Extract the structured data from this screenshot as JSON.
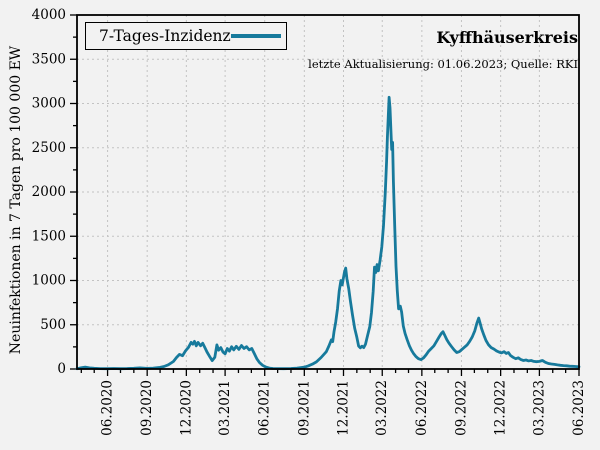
{
  "page": {
    "background": "#f2f2f2"
  },
  "chart_data": {
    "type": "line",
    "title": "Kyffhäuserkreis",
    "subtitle": "letzte Aktualisierung: 01.06.2023; Quelle: RKI",
    "xlabel": "",
    "ylabel": "Neuinfektionen in 7 Tagen pro 100 000 EW",
    "legend_position": "top-left",
    "grid": "dashed at major ticks",
    "x_range": [
      "2020-03-22",
      "2023-06-01"
    ],
    "y_range": [
      0,
      4000
    ],
    "y_major_step": 500,
    "y_minor_step": 250,
    "x_major_ticks": [
      {
        "label": "06.2020",
        "date": "2020-06-01"
      },
      {
        "label": "09.2020",
        "date": "2020-09-01"
      },
      {
        "label": "12.2020",
        "date": "2020-12-01"
      },
      {
        "label": "03.2021",
        "date": "2021-03-01"
      },
      {
        "label": "06.2021",
        "date": "2021-06-01"
      },
      {
        "label": "09.2021",
        "date": "2021-09-01"
      },
      {
        "label": "12.2021",
        "date": "2021-12-01"
      },
      {
        "label": "03.2022",
        "date": "2022-03-01"
      },
      {
        "label": "06.2022",
        "date": "2022-06-01"
      },
      {
        "label": "09.2022",
        "date": "2022-09-01"
      },
      {
        "label": "12.2022",
        "date": "2022-12-01"
      },
      {
        "label": "03.2023",
        "date": "2023-03-01"
      },
      {
        "label": "06.2023",
        "date": "2023-06-01"
      }
    ],
    "colors": {
      "line": "#177a9c",
      "background": "#f2f2f2",
      "grid": "#c3c3c3",
      "frame": "#000000"
    },
    "series": [
      {
        "name": "7-Tages-Inzidenz",
        "color": "#177a9c",
        "points": [
          [
            "2020-03-22",
            3
          ],
          [
            "2020-04-01",
            15
          ],
          [
            "2020-04-10",
            22
          ],
          [
            "2020-04-20",
            12
          ],
          [
            "2020-05-01",
            8
          ],
          [
            "2020-05-15",
            5
          ],
          [
            "2020-06-01",
            3
          ],
          [
            "2020-06-15",
            6
          ],
          [
            "2020-07-01",
            3
          ],
          [
            "2020-07-15",
            4
          ],
          [
            "2020-08-01",
            8
          ],
          [
            "2020-08-15",
            12
          ],
          [
            "2020-09-01",
            7
          ],
          [
            "2020-09-15",
            10
          ],
          [
            "2020-10-01",
            18
          ],
          [
            "2020-10-10",
            28
          ],
          [
            "2020-10-20",
            48
          ],
          [
            "2020-11-01",
            85
          ],
          [
            "2020-11-08",
            130
          ],
          [
            "2020-11-15",
            165
          ],
          [
            "2020-11-22",
            150
          ],
          [
            "2020-11-29",
            205
          ],
          [
            "2020-12-06",
            245
          ],
          [
            "2020-12-12",
            300
          ],
          [
            "2020-12-16",
            280
          ],
          [
            "2020-12-20",
            312
          ],
          [
            "2020-12-24",
            262
          ],
          [
            "2020-12-28",
            300
          ],
          [
            "2021-01-03",
            262
          ],
          [
            "2021-01-08",
            292
          ],
          [
            "2021-01-13",
            242
          ],
          [
            "2021-01-18",
            192
          ],
          [
            "2021-01-24",
            142
          ],
          [
            "2021-01-30",
            95
          ],
          [
            "2021-02-05",
            132
          ],
          [
            "2021-02-10",
            272
          ],
          [
            "2021-02-14",
            212
          ],
          [
            "2021-02-19",
            242
          ],
          [
            "2021-02-24",
            192
          ],
          [
            "2021-03-01",
            172
          ],
          [
            "2021-03-06",
            232
          ],
          [
            "2021-03-11",
            202
          ],
          [
            "2021-03-16",
            252
          ],
          [
            "2021-03-21",
            216
          ],
          [
            "2021-03-27",
            256
          ],
          [
            "2021-04-02",
            222
          ],
          [
            "2021-04-08",
            266
          ],
          [
            "2021-04-14",
            232
          ],
          [
            "2021-04-20",
            252
          ],
          [
            "2021-04-26",
            216
          ],
          [
            "2021-05-02",
            232
          ],
          [
            "2021-05-08",
            172
          ],
          [
            "2021-05-14",
            112
          ],
          [
            "2021-05-20",
            72
          ],
          [
            "2021-05-27",
            42
          ],
          [
            "2021-06-04",
            22
          ],
          [
            "2021-06-12",
            10
          ],
          [
            "2021-06-20",
            6
          ],
          [
            "2021-07-01",
            4
          ],
          [
            "2021-07-15",
            3
          ],
          [
            "2021-08-01",
            6
          ],
          [
            "2021-08-15",
            10
          ],
          [
            "2021-09-01",
            20
          ],
          [
            "2021-09-10",
            35
          ],
          [
            "2021-09-20",
            55
          ],
          [
            "2021-09-29",
            80
          ],
          [
            "2021-10-10",
            130
          ],
          [
            "2021-10-22",
            195
          ],
          [
            "2021-10-28",
            260
          ],
          [
            "2021-11-03",
            330
          ],
          [
            "2021-11-06",
            310
          ],
          [
            "2021-11-09",
            420
          ],
          [
            "2021-11-13",
            530
          ],
          [
            "2021-11-17",
            680
          ],
          [
            "2021-11-21",
            880
          ],
          [
            "2021-11-25",
            1000
          ],
          [
            "2021-11-28",
            950
          ],
          [
            "2021-12-03",
            1090
          ],
          [
            "2021-12-06",
            1140
          ],
          [
            "2021-12-09",
            1020
          ],
          [
            "2021-12-13",
            910
          ],
          [
            "2021-12-17",
            770
          ],
          [
            "2021-12-22",
            610
          ],
          [
            "2021-12-27",
            460
          ],
          [
            "2022-01-01",
            360
          ],
          [
            "2022-01-05",
            260
          ],
          [
            "2022-01-09",
            240
          ],
          [
            "2022-01-13",
            258
          ],
          [
            "2022-01-17",
            242
          ],
          [
            "2022-01-21",
            280
          ],
          [
            "2022-01-26",
            380
          ],
          [
            "2022-01-31",
            480
          ],
          [
            "2022-02-04",
            640
          ],
          [
            "2022-02-08",
            880
          ],
          [
            "2022-02-11",
            1150
          ],
          [
            "2022-02-14",
            1090
          ],
          [
            "2022-02-17",
            1180
          ],
          [
            "2022-02-20",
            1110
          ],
          [
            "2022-02-24",
            1230
          ],
          [
            "2022-02-28",
            1380
          ],
          [
            "2022-03-04",
            1620
          ],
          [
            "2022-03-08",
            2000
          ],
          [
            "2022-03-11",
            2350
          ],
          [
            "2022-03-13",
            2620
          ],
          [
            "2022-03-15",
            2860
          ],
          [
            "2022-03-17",
            3070
          ],
          [
            "2022-03-19",
            2950
          ],
          [
            "2022-03-21",
            2700
          ],
          [
            "2022-03-23",
            2480
          ],
          [
            "2022-03-25",
            2560
          ],
          [
            "2022-03-27",
            2120
          ],
          [
            "2022-03-30",
            1620
          ],
          [
            "2022-04-02",
            1160
          ],
          [
            "2022-04-05",
            880
          ],
          [
            "2022-04-08",
            680
          ],
          [
            "2022-04-12",
            710
          ],
          [
            "2022-04-15",
            645
          ],
          [
            "2022-04-19",
            485
          ],
          [
            "2022-04-23",
            400
          ],
          [
            "2022-04-28",
            330
          ],
          [
            "2022-05-03",
            262
          ],
          [
            "2022-05-08",
            212
          ],
          [
            "2022-05-13",
            172
          ],
          [
            "2022-05-18",
            142
          ],
          [
            "2022-05-24",
            116
          ],
          [
            "2022-05-30",
            106
          ],
          [
            "2022-06-05",
            126
          ],
          [
            "2022-06-11",
            162
          ],
          [
            "2022-06-17",
            202
          ],
          [
            "2022-06-23",
            232
          ],
          [
            "2022-06-29",
            262
          ],
          [
            "2022-07-05",
            312
          ],
          [
            "2022-07-11",
            362
          ],
          [
            "2022-07-16",
            400
          ],
          [
            "2022-07-20",
            422
          ],
          [
            "2022-07-24",
            382
          ],
          [
            "2022-07-29",
            332
          ],
          [
            "2022-08-03",
            292
          ],
          [
            "2022-08-09",
            252
          ],
          [
            "2022-08-15",
            216
          ],
          [
            "2022-08-21",
            186
          ],
          [
            "2022-08-27",
            196
          ],
          [
            "2022-09-02",
            222
          ],
          [
            "2022-09-08",
            246
          ],
          [
            "2022-09-14",
            272
          ],
          [
            "2022-09-20",
            312
          ],
          [
            "2022-09-26",
            362
          ],
          [
            "2022-10-02",
            432
          ],
          [
            "2022-10-07",
            522
          ],
          [
            "2022-10-11",
            575
          ],
          [
            "2022-10-14",
            522
          ],
          [
            "2022-10-18",
            452
          ],
          [
            "2022-10-23",
            382
          ],
          [
            "2022-10-28",
            322
          ],
          [
            "2022-11-03",
            272
          ],
          [
            "2022-11-09",
            242
          ],
          [
            "2022-11-15",
            226
          ],
          [
            "2022-11-21",
            206
          ],
          [
            "2022-11-27",
            192
          ],
          [
            "2022-12-03",
            182
          ],
          [
            "2022-12-09",
            196
          ],
          [
            "2022-12-14",
            176
          ],
          [
            "2022-12-19",
            186
          ],
          [
            "2022-12-24",
            152
          ],
          [
            "2022-12-30",
            132
          ],
          [
            "2023-01-05",
            116
          ],
          [
            "2023-01-11",
            126
          ],
          [
            "2023-01-17",
            106
          ],
          [
            "2023-01-23",
            96
          ],
          [
            "2023-01-29",
            102
          ],
          [
            "2023-02-04",
            92
          ],
          [
            "2023-02-10",
            96
          ],
          [
            "2023-02-16",
            86
          ],
          [
            "2023-02-22",
            82
          ],
          [
            "2023-03-01",
            86
          ],
          [
            "2023-03-08",
            96
          ],
          [
            "2023-03-15",
            76
          ],
          [
            "2023-03-22",
            62
          ],
          [
            "2023-03-29",
            56
          ],
          [
            "2023-04-05",
            52
          ],
          [
            "2023-04-12",
            46
          ],
          [
            "2023-04-19",
            42
          ],
          [
            "2023-04-26",
            38
          ],
          [
            "2023-05-03",
            36
          ],
          [
            "2023-05-10",
            32
          ],
          [
            "2023-05-17",
            30
          ],
          [
            "2023-05-24",
            28
          ],
          [
            "2023-06-01",
            25
          ]
        ]
      }
    ]
  }
}
